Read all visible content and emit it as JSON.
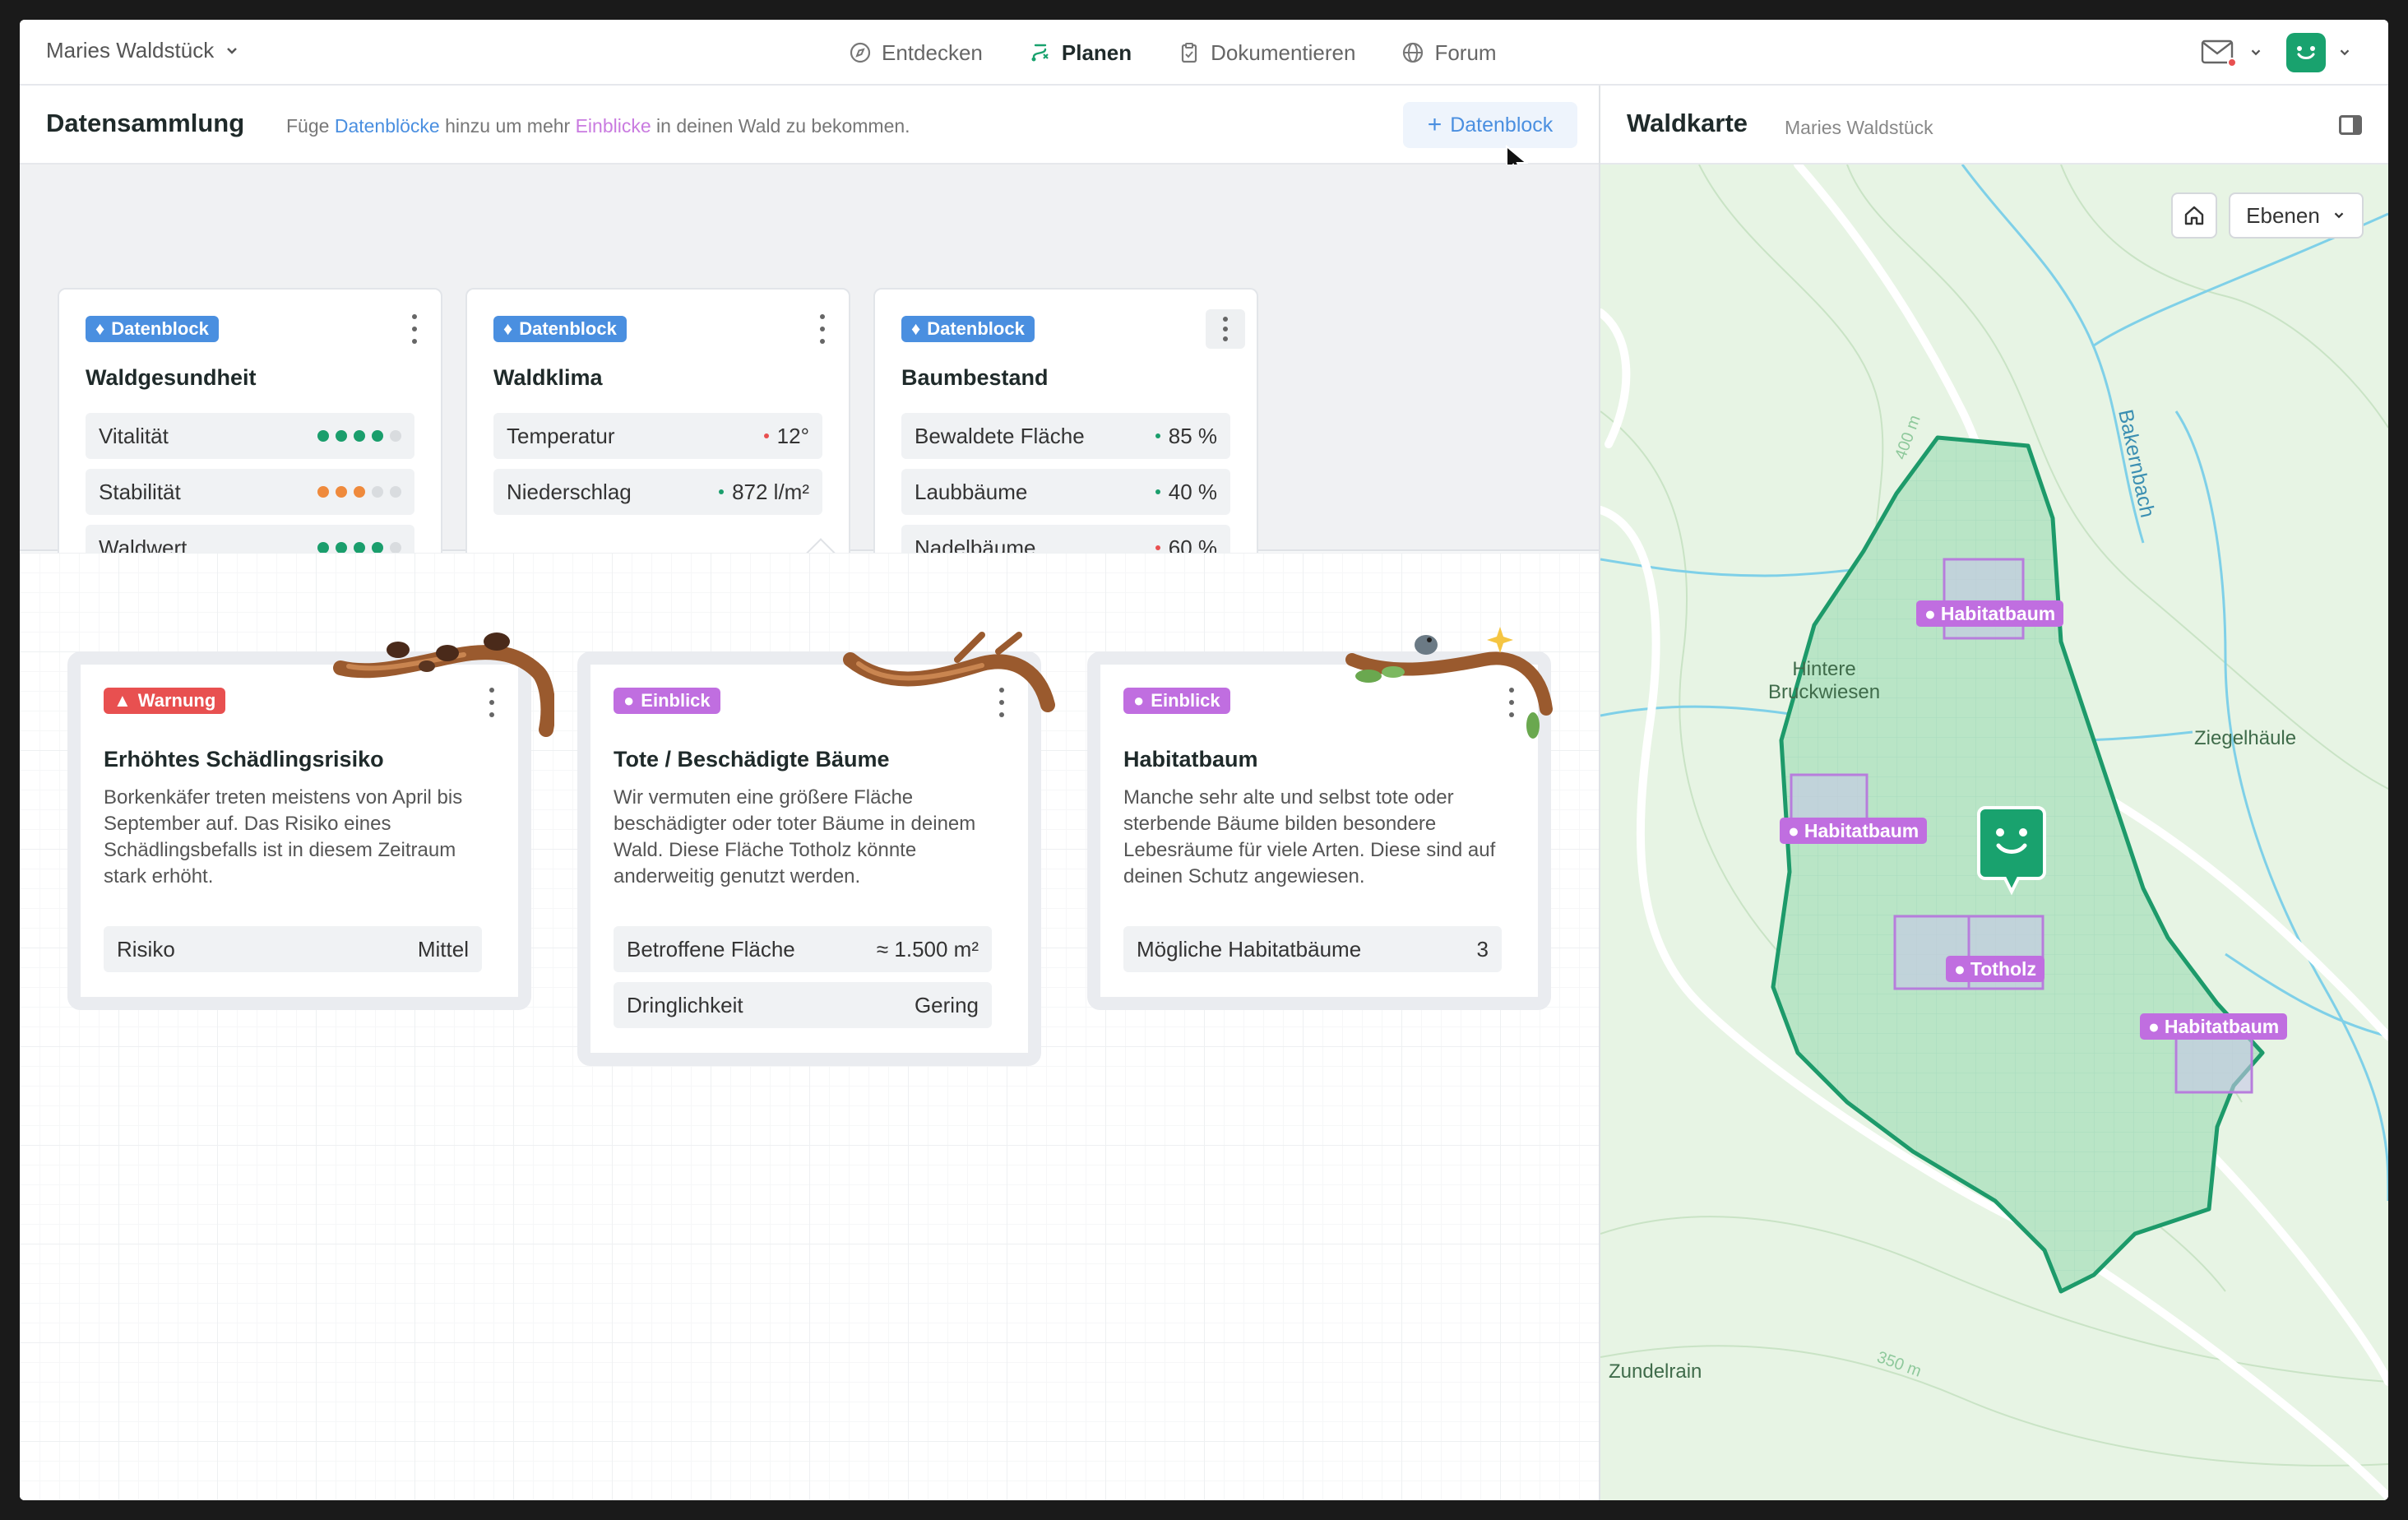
{
  "project": {
    "name": "Maries Waldstück"
  },
  "nav": {
    "items": [
      {
        "label": "Entdecken"
      },
      {
        "label": "Planen"
      },
      {
        "label": "Dokumentieren"
      },
      {
        "label": "Forum"
      }
    ],
    "active": "Planen"
  },
  "colors": {
    "accent": "#19a26e",
    "blue": "#4a8fe0",
    "purple": "#c06ee0",
    "warn": "#e85050"
  },
  "collection": {
    "title": "Datensammlung",
    "sub_pre": "Füge ",
    "sub_link1": "Datenblöcke",
    "sub_mid": " hinzu um mehr ",
    "sub_link2": "Einblicke",
    "sub_post": " in deinen Wald zu bekommen.",
    "add_label": "Datenblock",
    "add_icon": "plus-icon"
  },
  "datablocks": [
    {
      "badge": "Datenblock",
      "title": "Waldgesundheit",
      "rows": [
        {
          "label": "Vitalität",
          "level": 4,
          "of": 5,
          "color": "#1a9e6c"
        },
        {
          "label": "Stabilität",
          "level": 3,
          "of": 5,
          "color": "#ef8a3c"
        },
        {
          "label": "Waldwert",
          "level": 4,
          "of": 5,
          "color": "#1a9e6c"
        }
      ]
    },
    {
      "badge": "Datenblock",
      "title": "Waldklima",
      "rows": [
        {
          "label": "Temperatur",
          "value": "12°",
          "status": "#e85050"
        },
        {
          "label": "Niederschlag",
          "value": "872 l/m²",
          "status": "#1a9e6c"
        }
      ]
    },
    {
      "badge": "Datenblock",
      "title": "Baumbestand",
      "rows": [
        {
          "label": "Bewaldete Fläche",
          "value": "85 %",
          "status": "#1a9e6c"
        },
        {
          "label": "Laubbäume",
          "value": "40 %",
          "status": "#1a9e6c"
        },
        {
          "label": "Nadelbäume",
          "value": "60 %",
          "status": "#e85050"
        }
      ]
    }
  ],
  "insights": [
    {
      "badge": "Warnung",
      "badge_icon": "warning-triangle-icon",
      "title": "Erhöhtes Schädlingsrisiko",
      "desc": "Borkenkäfer treten meistens von April bis September auf. Das Risiko eines Schädlingsbefalls ist in diesem Zeitraum stark erhöht.",
      "rows": [
        {
          "label": "Risiko",
          "value": "Mittel"
        }
      ]
    },
    {
      "badge": "Einblick",
      "badge_icon": "lightbulb-icon",
      "title": "Tote / Beschädigte Bäume",
      "desc": "Wir vermuten eine größere Fläche beschädigter oder toter Bäume in deinem Wald. Diese Fläche Totholz könnte anderweitig genutzt werden.",
      "rows": [
        {
          "label": "Betroffene Fläche",
          "value": "≈ 1.500 m²"
        },
        {
          "label": "Dringlichkeit",
          "value": "Gering"
        }
      ]
    },
    {
      "badge": "Einblick",
      "badge_icon": "lightbulb-icon",
      "title": "Habitatbaum",
      "desc": "Manche sehr alte und selbst tote oder sterbende Bäume bilden besondere Lebesräume für viele Arten. Diese sind auf deinen Schutz angewiesen.",
      "rows": [
        {
          "label": "Mögliche Habitatbäume",
          "value": "3"
        }
      ]
    }
  ],
  "map": {
    "title": "Waldkarte",
    "sub": "Maries Waldstück",
    "layers_label": "Ebenen",
    "labels": {
      "hintere": "Hintere\nBruckwiesen",
      "ziegel": "Ziegelhäule",
      "zundel": "Zundelrain",
      "bach": "Bakernbach",
      "c400": "400 m",
      "c350": "350 m"
    },
    "pins": [
      {
        "label": "Habitatbaum"
      },
      {
        "label": "Habitatbaum"
      },
      {
        "label": "Totholz"
      },
      {
        "label": "Habitatbaum"
      }
    ]
  }
}
